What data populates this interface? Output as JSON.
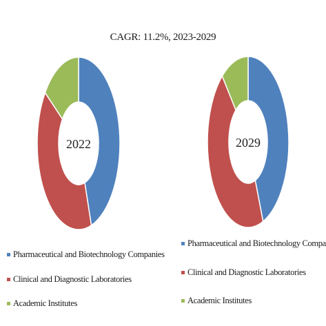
{
  "chart_data": {
    "type": "donut",
    "title": "CAGR: 11.2%, 2023-2029",
    "categories": [
      "Pharmaceutical and Biotechnology Companies",
      "Clinical and Diagnostic Laboratories",
      "Academic Institutes"
    ],
    "colors": [
      "#4f81bd",
      "#c0504d",
      "#9bbb59"
    ],
    "charts": [
      {
        "label": "2022",
        "values": [
          45,
          40,
          15
        ]
      },
      {
        "label": "2029",
        "values": [
          44,
          45,
          11
        ]
      }
    ]
  }
}
